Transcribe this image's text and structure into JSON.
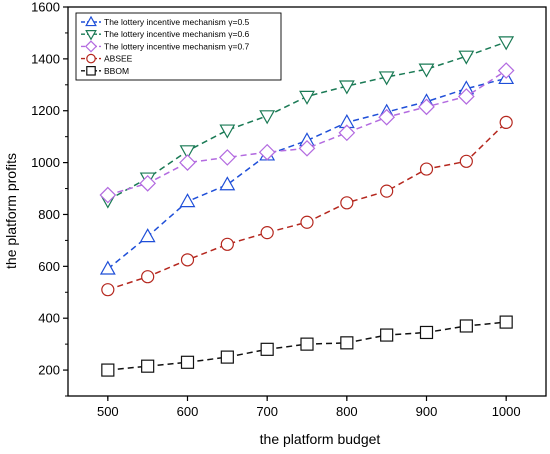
{
  "chart_data": {
    "type": "line",
    "title": "",
    "xlabel": "the platform budget",
    "ylabel": "the platform profits",
    "x": [
      500,
      550,
      600,
      650,
      700,
      750,
      800,
      850,
      900,
      950,
      1000
    ],
    "xlim": [
      450,
      1050
    ],
    "ylim": [
      100,
      1600
    ],
    "xticks": [
      500,
      600,
      700,
      800,
      900,
      1000
    ],
    "yticks": [
      200,
      400,
      600,
      800,
      1000,
      1200,
      1400,
      1600
    ],
    "grid": false,
    "legend": "top-left",
    "series": [
      {
        "name": "The lottery incentive mechanism γ=0.5",
        "color": "#1f4fd8",
        "marker": "triangle-up",
        "values": [
          590,
          715,
          850,
          915,
          1030,
          1085,
          1155,
          1195,
          1235,
          1285,
          1325
        ]
      },
      {
        "name": "The lottery incentive mechanism γ=0.6",
        "color": "#1a7a55",
        "marker": "triangle-down",
        "values": [
          855,
          940,
          1045,
          1125,
          1180,
          1255,
          1295,
          1330,
          1360,
          1410,
          1465
        ]
      },
      {
        "name": "The lottery incentive mechanism γ=0.7",
        "color": "#b36be0",
        "marker": "diamond",
        "values": [
          875,
          920,
          1000,
          1020,
          1040,
          1055,
          1115,
          1175,
          1215,
          1255,
          1355
        ]
      },
      {
        "name": "ABSEE",
        "color": "#b5271e",
        "marker": "circle",
        "values": [
          510,
          560,
          625,
          685,
          730,
          770,
          845,
          890,
          975,
          1005,
          1155
        ]
      },
      {
        "name": "BBOM",
        "color": "#111111",
        "marker": "square",
        "values": [
          200,
          215,
          230,
          250,
          280,
          300,
          305,
          335,
          345,
          370,
          385
        ]
      }
    ]
  }
}
